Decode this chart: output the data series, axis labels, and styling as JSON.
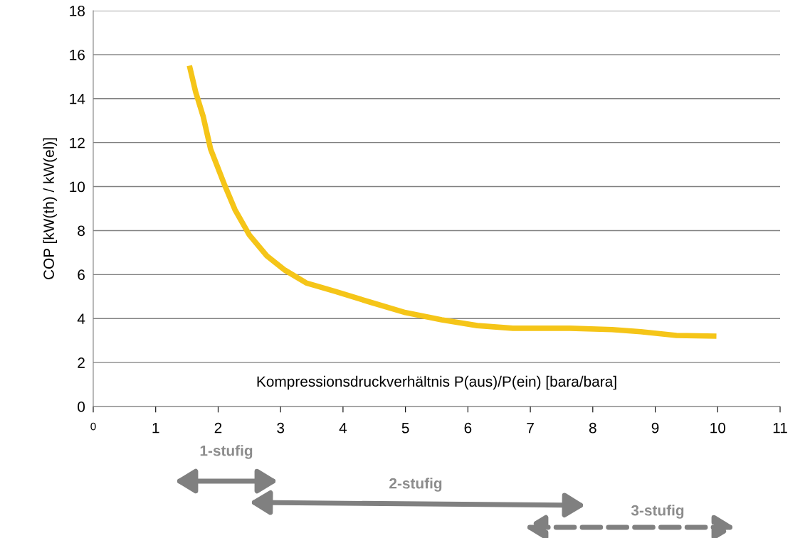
{
  "chart_data": {
    "type": "line",
    "xlabel": "Kompressionsdruckverhältnis P(aus)/P(ein) [bara/bara]",
    "ylabel": "COP [kW(th) / kW(el)]",
    "series": [
      {
        "color": "#f5c518",
        "x": [
          1.54,
          1.64,
          1.76,
          1.88,
          2.1,
          2.27,
          2.5,
          2.78,
          3.07,
          3.41,
          3.87,
          4.43,
          5.0,
          5.58,
          6.15,
          6.72,
          7.63,
          8.31,
          8.77,
          9.34,
          9.98
        ],
        "values": [
          15.5,
          14.3,
          13.2,
          11.7,
          10.1,
          8.95,
          7.8,
          6.85,
          6.2,
          5.62,
          5.24,
          4.75,
          4.27,
          3.94,
          3.68,
          3.56,
          3.56,
          3.5,
          3.4,
          3.23,
          3.2
        ]
      }
    ],
    "xlim": [
      0,
      11
    ],
    "xticks": [
      0,
      1,
      2,
      3,
      4,
      5,
      6,
      7,
      8,
      9,
      10,
      11
    ],
    "ylim": [
      0,
      18
    ],
    "yticks": [
      0,
      2,
      4,
      6,
      8,
      10,
      12,
      14,
      16,
      18
    ],
    "grid": "y",
    "marker": "none",
    "line_style": "solid",
    "legend": false,
    "annotations": [
      "1-stufig",
      "2-stufig",
      "3-stufig"
    ]
  }
}
